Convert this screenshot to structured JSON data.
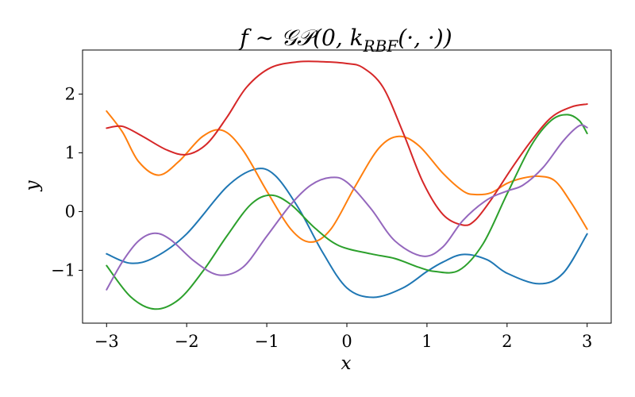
{
  "chart_data": {
    "type": "line",
    "title": "f ∼ 𝒢𝒫(0, k_RBF(·, ·))",
    "title_display": {
      "pre": "f ∼ 𝒢𝒫(0, k",
      "sub": "RBF",
      "post": "(·, ·))"
    },
    "xlabel": "x",
    "ylabel": "y",
    "xlim": [
      -3.3,
      3.3
    ],
    "ylim": [
      -1.9,
      2.75
    ],
    "xticks": [
      -3,
      -2,
      -1,
      0,
      1,
      2,
      3
    ],
    "xtick_labels": [
      "−3",
      "−2",
      "−1",
      "0",
      "1",
      "2",
      "3"
    ],
    "yticks": [
      -1,
      0,
      1,
      2
    ],
    "ytick_labels": [
      "−1",
      "0",
      "1",
      "2"
    ],
    "grid": false,
    "legend": "none",
    "series": [
      {
        "color": "#1f77b4",
        "x": [
          -3.0,
          -2.7,
          -2.4,
          -2.0,
          -1.5,
          -1.15,
          -0.9,
          -0.6,
          -0.3,
          0.0,
          0.33,
          0.7,
          1.0,
          1.2,
          1.45,
          1.75,
          2.0,
          2.4,
          2.7,
          3.0
        ],
        "y": [
          -0.72,
          -0.88,
          -0.78,
          -0.38,
          0.42,
          0.72,
          0.62,
          0.05,
          -0.7,
          -1.3,
          -1.46,
          -1.3,
          -1.02,
          -0.86,
          -0.73,
          -0.82,
          -1.05,
          -1.23,
          -1.05,
          -0.38
        ]
      },
      {
        "color": "#ff7f0e",
        "x": [
          -3.0,
          -2.8,
          -2.6,
          -2.35,
          -2.1,
          -1.8,
          -1.55,
          -1.3,
          -1.0,
          -0.7,
          -0.45,
          -0.2,
          0.1,
          0.4,
          0.65,
          0.9,
          1.2,
          1.45,
          1.6,
          1.8,
          2.0,
          2.2,
          2.4,
          2.6,
          2.8,
          3.0
        ],
        "y": [
          1.71,
          1.35,
          0.85,
          0.62,
          0.85,
          1.28,
          1.38,
          1.05,
          0.35,
          -0.3,
          -0.52,
          -0.3,
          0.42,
          1.08,
          1.28,
          1.12,
          0.65,
          0.35,
          0.29,
          0.32,
          0.48,
          0.57,
          0.6,
          0.52,
          0.15,
          -0.3
        ]
      },
      {
        "color": "#2ca02c",
        "x": [
          -3.0,
          -2.7,
          -2.4,
          -2.1,
          -1.8,
          -1.5,
          -1.2,
          -0.95,
          -0.7,
          -0.4,
          -0.1,
          0.3,
          0.6,
          0.9,
          1.1,
          1.4,
          1.7,
          2.0,
          2.3,
          2.55,
          2.75,
          2.9,
          3.0
        ],
        "y": [
          -0.92,
          -1.45,
          -1.66,
          -1.5,
          -1.02,
          -0.42,
          0.12,
          0.28,
          0.12,
          -0.28,
          -0.58,
          -0.72,
          -0.8,
          -0.95,
          -1.02,
          -1.0,
          -0.55,
          0.3,
          1.12,
          1.55,
          1.65,
          1.55,
          1.33
        ]
      },
      {
        "color": "#d62728",
        "x": [
          -3.0,
          -2.8,
          -2.55,
          -2.25,
          -2.0,
          -1.75,
          -1.5,
          -1.25,
          -0.95,
          -0.6,
          -0.3,
          0.0,
          0.2,
          0.45,
          0.7,
          0.95,
          1.2,
          1.45,
          1.6,
          1.8,
          2.05,
          2.3,
          2.55,
          2.8,
          3.0
        ],
        "y": [
          1.42,
          1.45,
          1.28,
          1.05,
          0.97,
          1.15,
          1.6,
          2.12,
          2.45,
          2.55,
          2.55,
          2.52,
          2.45,
          2.12,
          1.35,
          0.5,
          -0.05,
          -0.23,
          -0.15,
          0.2,
          0.72,
          1.2,
          1.6,
          1.78,
          1.83
        ]
      },
      {
        "color": "#9467bd",
        "x": [
          -3.0,
          -2.8,
          -2.6,
          -2.4,
          -2.2,
          -1.9,
          -1.6,
          -1.3,
          -1.0,
          -0.7,
          -0.45,
          -0.2,
          0.0,
          0.3,
          0.6,
          0.95,
          1.2,
          1.45,
          1.75,
          2.0,
          2.2,
          2.45,
          2.7,
          2.9,
          3.0
        ],
        "y": [
          -1.33,
          -0.85,
          -0.5,
          -0.37,
          -0.48,
          -0.85,
          -1.08,
          -0.95,
          -0.42,
          0.12,
          0.45,
          0.58,
          0.5,
          0.05,
          -0.5,
          -0.76,
          -0.6,
          -0.15,
          0.2,
          0.35,
          0.45,
          0.75,
          1.2,
          1.46,
          1.43
        ]
      }
    ]
  }
}
